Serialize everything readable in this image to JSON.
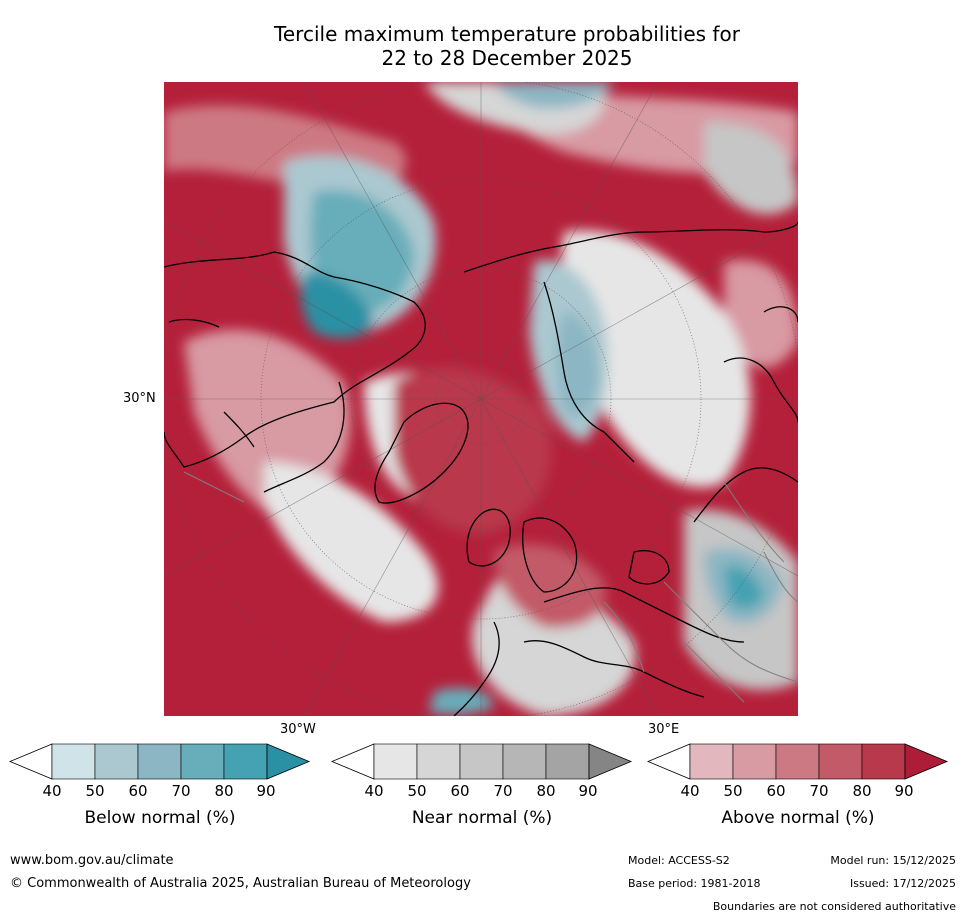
{
  "title": {
    "line1": "Tercile maximum temperature probabilities for",
    "line2": "22 to 28 December 2025"
  },
  "map": {
    "projection": "north polar stereographic",
    "lon_labels": {
      "left": "30°N",
      "bottom_left": "30°W",
      "bottom_right": "30°E"
    },
    "coastline_color": "#000000",
    "border_color": "#7f7f7f"
  },
  "colorbars": [
    {
      "label": "Below normal (%)",
      "ticks": [
        "40",
        "50",
        "60",
        "70",
        "80",
        "90"
      ],
      "colors": [
        "#ffffff",
        "#cfe3e8",
        "#abc8d0",
        "#8cb6c3",
        "#67adba",
        "#45a2b2",
        "#2a90a4"
      ]
    },
    {
      "label": "Near normal (%)",
      "ticks": [
        "40",
        "50",
        "60",
        "70",
        "80",
        "90"
      ],
      "colors": [
        "#ffffff",
        "#e6e6e6",
        "#d6d6d6",
        "#c6c6c6",
        "#b6b6b6",
        "#a4a4a4",
        "#858585"
      ]
    },
    {
      "label": "Above normal (%)",
      "ticks": [
        "40",
        "50",
        "60",
        "70",
        "80",
        "90"
      ],
      "colors": [
        "#ffffff",
        "#e2b7bd",
        "#d89aa3",
        "#cd7984",
        "#c35a68",
        "#b9394c",
        "#ad1d38"
      ]
    }
  ],
  "footer": {
    "url": "www.bom.gov.au/climate",
    "copyright": "© Commonwealth of Australia 2025, Australian Bureau of Meteorology",
    "model": "Model: ACCESS-S2",
    "base_period": "Base period: 1981-2018",
    "model_run": "Model run: 15/12/2025",
    "issued": "Issued: 17/12/2025",
    "disclaimer": "Boundaries are not considered authoritative"
  }
}
